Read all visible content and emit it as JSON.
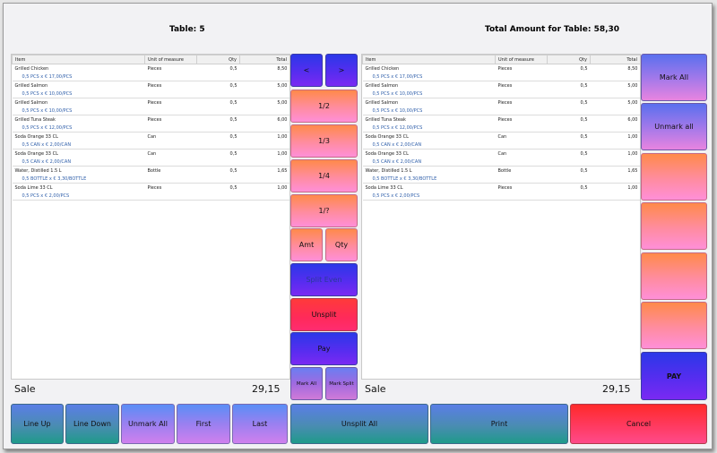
{
  "header": {
    "table_label": "Table: 5",
    "total_label": "Total Amount for Table: 58,30"
  },
  "columns": [
    "Item",
    "Unit of measure",
    "Qty",
    "Total"
  ],
  "left_items": [
    {
      "name": "Grilled Chicken",
      "unit": "Pieces",
      "qty": "0,5",
      "total": "8,50",
      "detail": "0,5 PCS x € 17,00/PCS"
    },
    {
      "name": "Grilled Salmon",
      "unit": "Pieces",
      "qty": "0,5",
      "total": "5,00",
      "detail": "0,5 PCS x € 10,00/PCS"
    },
    {
      "name": "Grilled Salmon",
      "unit": "Pieces",
      "qty": "0,5",
      "total": "5,00",
      "detail": "0,5 PCS x € 10,00/PCS"
    },
    {
      "name": "Grilled Tuna Steak",
      "unit": "Pieces",
      "qty": "0,5",
      "total": "6,00",
      "detail": "0,5 PCS x € 12,00/PCS"
    },
    {
      "name": "Soda Orange 33 CL",
      "unit": "Can",
      "qty": "0,5",
      "total": "1,00",
      "detail": "0,5 CAN x € 2,00/CAN"
    },
    {
      "name": "Soda Orange 33 CL",
      "unit": "Can",
      "qty": "0,5",
      "total": "1,00",
      "detail": "0,5 CAN x € 2,00/CAN"
    },
    {
      "name": "Water, Distilled 1.5 L",
      "unit": "Bottle",
      "qty": "0,5",
      "total": "1,65",
      "detail": "0,5 BOTTLE x € 3,30/BOTTLE"
    },
    {
      "name": "Soda Lime 33 CL",
      "unit": "Pieces",
      "qty": "0,5",
      "total": "1,00",
      "detail": "0,5 PCS x € 2,00/PCS"
    }
  ],
  "right_items": [
    {
      "name": "Grilled Chicken",
      "unit": "Pieces",
      "qty": "0,5",
      "total": "8,50",
      "detail": "0,5 PCS x € 17,00/PCS"
    },
    {
      "name": "Grilled Salmon",
      "unit": "Pieces",
      "qty": "0,5",
      "total": "5,00",
      "detail": "0,5 PCS x € 10,00/PCS"
    },
    {
      "name": "Grilled Salmon",
      "unit": "Pieces",
      "qty": "0,5",
      "total": "5,00",
      "detail": "0,5 PCS x € 10,00/PCS"
    },
    {
      "name": "Grilled Tuna Steak",
      "unit": "Pieces",
      "qty": "0,5",
      "total": "6,00",
      "detail": "0,5 PCS x € 12,00/PCS"
    },
    {
      "name": "Soda Orange 33 CL",
      "unit": "Can",
      "qty": "0,5",
      "total": "1,00",
      "detail": "0,5 CAN x € 2,00/CAN"
    },
    {
      "name": "Soda Orange 33 CL",
      "unit": "Can",
      "qty": "0,5",
      "total": "1,00",
      "detail": "0,5 CAN x € 2,00/CAN"
    },
    {
      "name": "Water, Distilled 1.5 L",
      "unit": "Bottle",
      "qty": "0,5",
      "total": "1,65",
      "detail": "0,5 BOTTLE x € 3,30/BOTTLE"
    },
    {
      "name": "Soda Lime 33 CL",
      "unit": "Pieces",
      "qty": "0,5",
      "total": "1,00",
      "detail": "0,5 PCS x € 2,00/PCS"
    }
  ],
  "left_footer": {
    "label": "Sale",
    "amount": "29,15"
  },
  "right_footer": {
    "label": "Sale",
    "amount": "29,15"
  },
  "center_buttons": {
    "prev": "<",
    "next": ">",
    "half": "1/2",
    "third": "1/3",
    "quarter": "1/4",
    "custom": "1/?",
    "amt": "Amt",
    "qty": "Qty",
    "split_even": "Split Even",
    "unsplit": "Unsplit",
    "pay": "Pay",
    "mark_all": "Mark All",
    "mark_split": "Mark Split"
  },
  "right_buttons": {
    "mark_all": "Mark All",
    "unmark_all": "Unmark all",
    "pay": "PAY"
  },
  "bottom_buttons": {
    "line_up": "Line Up",
    "line_down": "Line Down",
    "unmark_all": "Unmark All",
    "first": "First",
    "last": "Last",
    "unsplit_all": "Unsplit All",
    "print": "Print",
    "cancel": "Cancel"
  },
  "colors": {
    "accent_orange": "#ff8a4a",
    "accent_blue": "#2b38e8",
    "accent_red": "#ff3a3a",
    "detail_text": "#2f5faa"
  }
}
